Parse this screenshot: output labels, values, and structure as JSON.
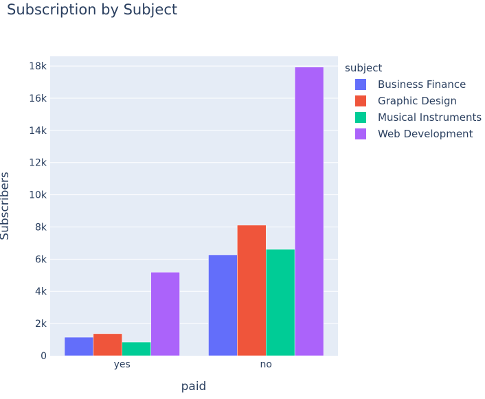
{
  "chart_data": {
    "type": "bar",
    "title": "Subscription by Subject",
    "xlabel": "paid",
    "ylabel": "Subscribers",
    "categories": [
      "yes",
      "no"
    ],
    "ylim": [
      0,
      18600
    ],
    "yticks": [
      0,
      2000,
      4000,
      6000,
      8000,
      10000,
      12000,
      14000,
      16000,
      18000
    ],
    "ytick_labels": [
      "0",
      "2k",
      "4k",
      "6k",
      "8k",
      "10k",
      "12k",
      "14k",
      "16k",
      "18k"
    ],
    "grid": true,
    "legend": {
      "title": "subject",
      "position": "right"
    },
    "series": [
      {
        "name": "Business Finance",
        "color": "#636efa",
        "values": [
          1150,
          6270
        ]
      },
      {
        "name": "Graphic Design",
        "color": "#ef553b",
        "values": [
          1370,
          8110
        ]
      },
      {
        "name": "Musical Instruments",
        "color": "#00cc96",
        "values": [
          850,
          6610
        ]
      },
      {
        "name": "Web Development",
        "color": "#ab63fa",
        "values": [
          5190,
          17930
        ]
      }
    ]
  }
}
